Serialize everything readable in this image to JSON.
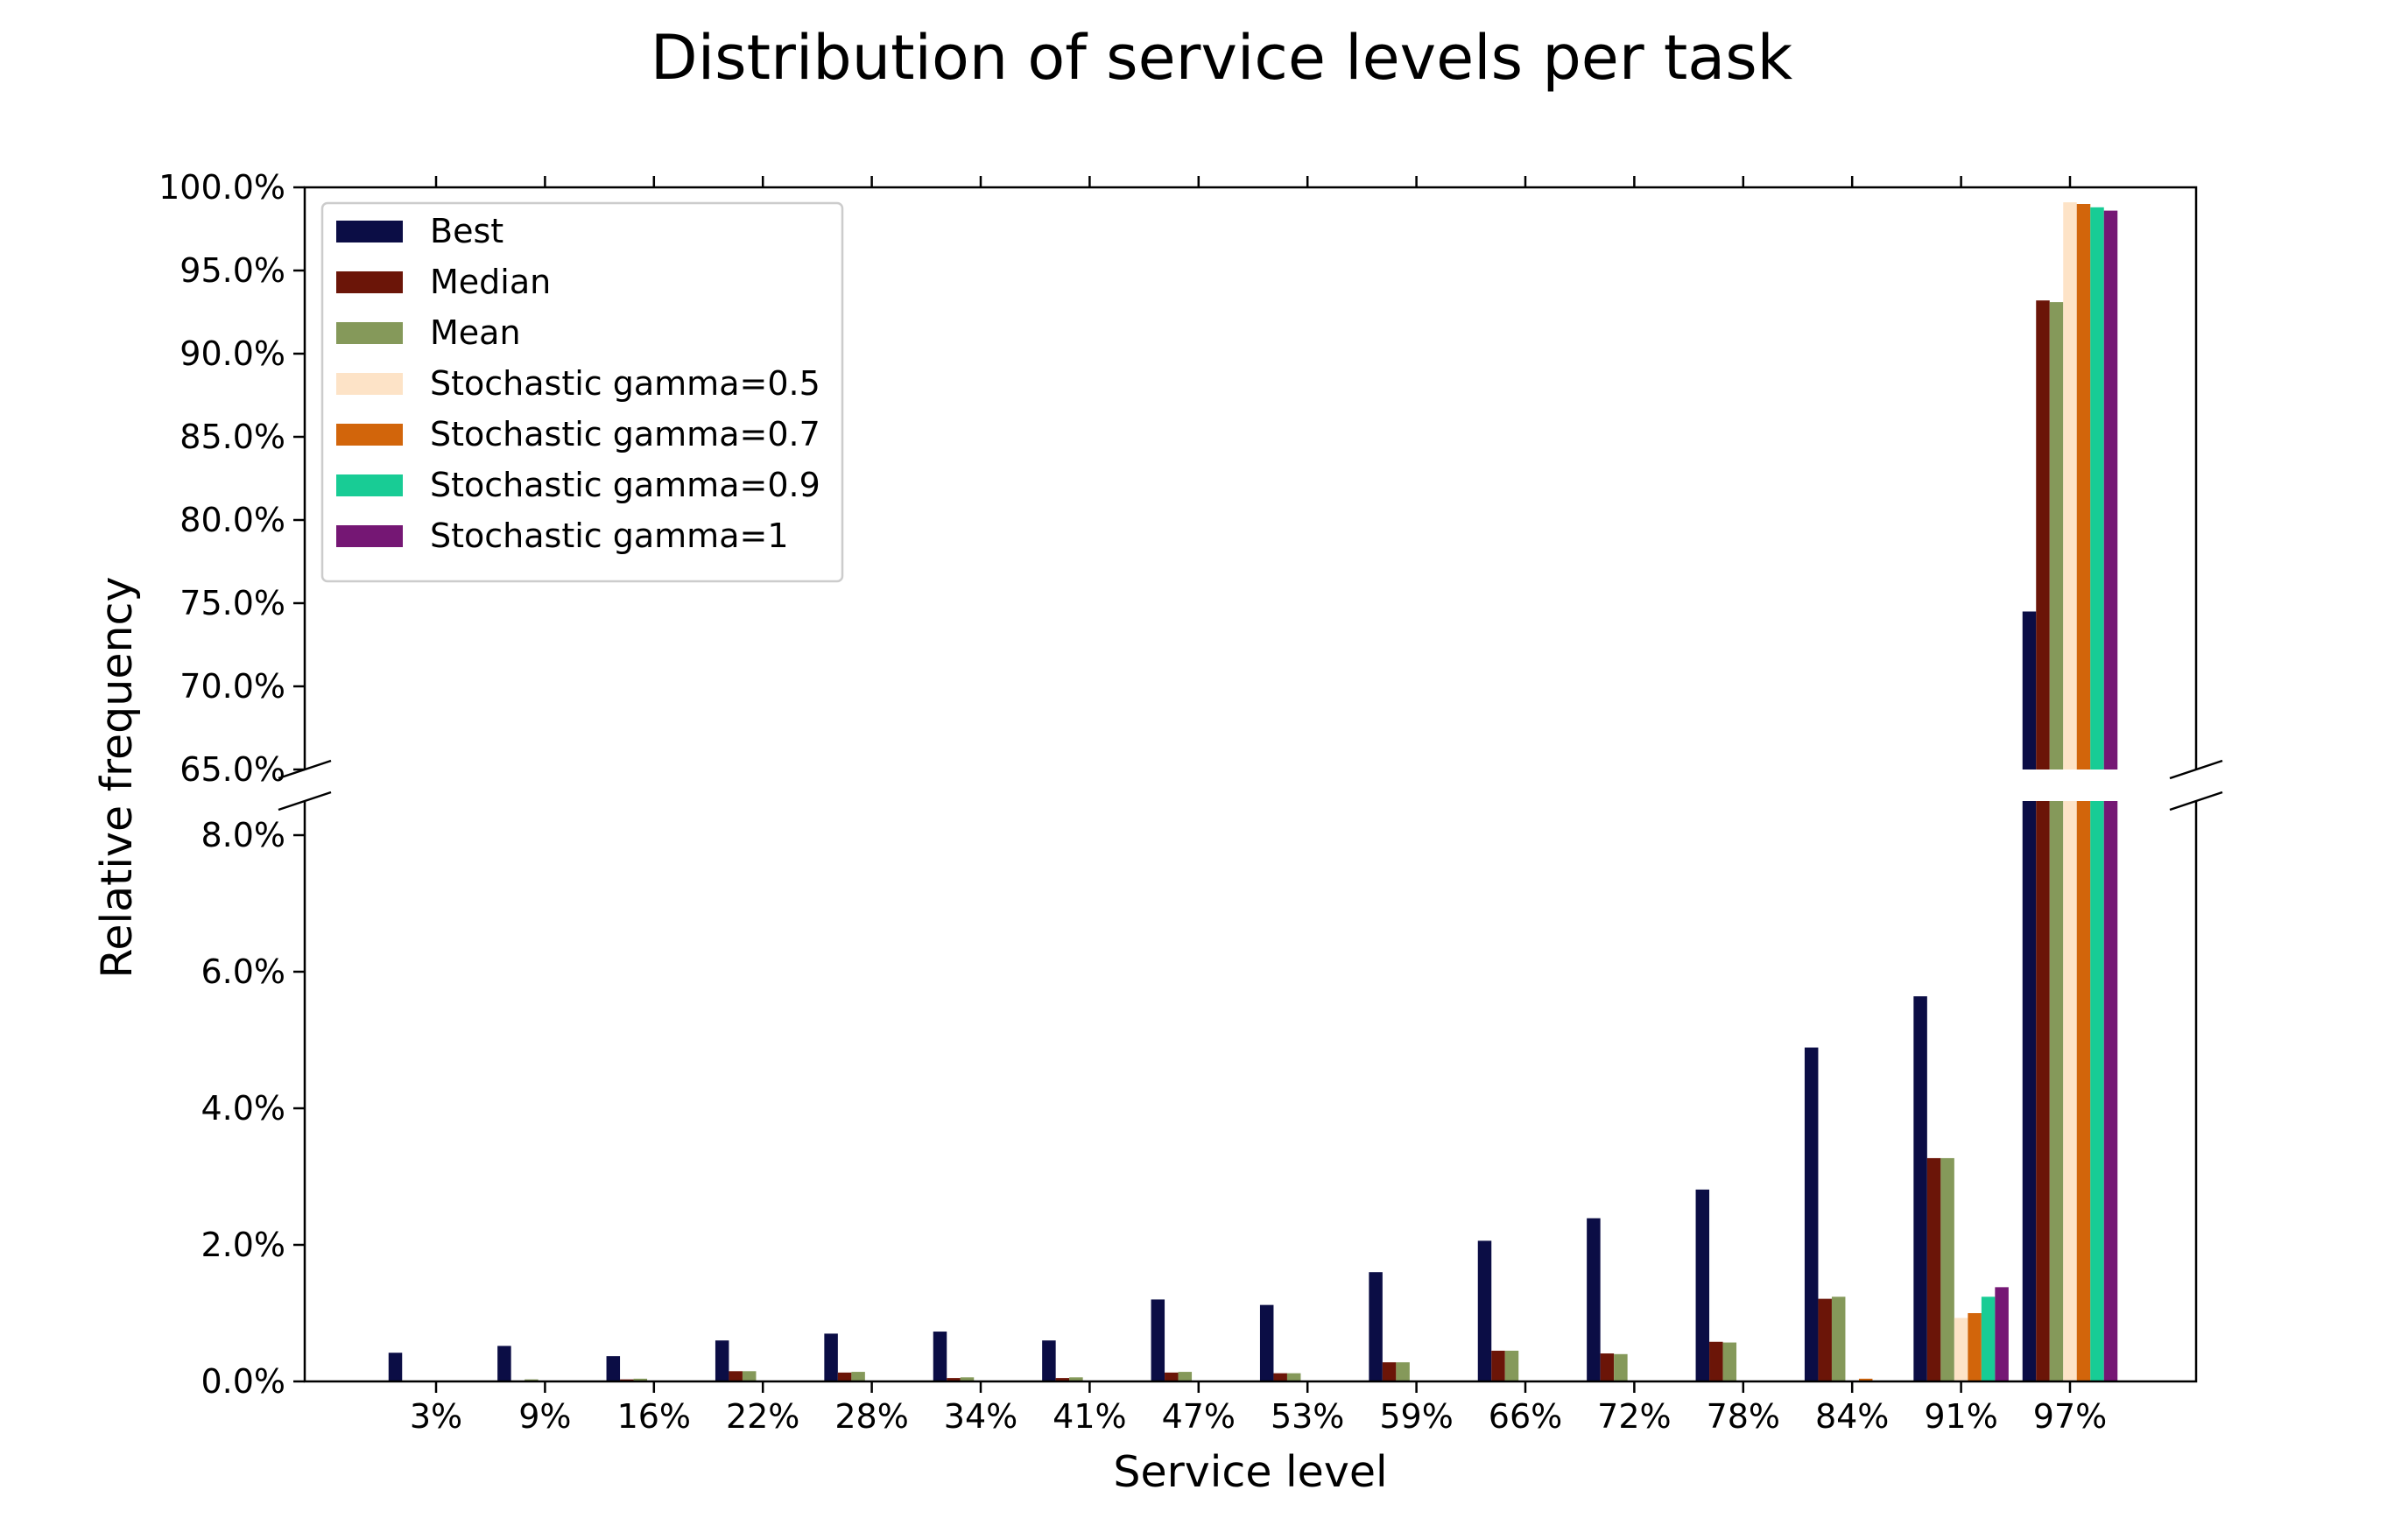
{
  "chart_data": {
    "type": "bar",
    "title": "Distribution of service levels per task",
    "xlabel": "Service level",
    "ylabel": "Relative frequency",
    "categories": [
      "3%",
      "9%",
      "16%",
      "22%",
      "28%",
      "34%",
      "41%",
      "47%",
      "53%",
      "59%",
      "66%",
      "72%",
      "78%",
      "84%",
      "91%",
      "97%"
    ],
    "broken_axis": {
      "lower_ylim": [
        0,
        8.5
      ],
      "upper_ylim": [
        65,
        100
      ],
      "lower_ticks": [
        "0.0%",
        "2.0%",
        "4.0%",
        "6.0%",
        "8.0%"
      ],
      "lower_tick_values": [
        0,
        2,
        4,
        6,
        8
      ],
      "upper_ticks": [
        "65.0%",
        "70.0%",
        "75.0%",
        "80.0%",
        "85.0%",
        "90.0%",
        "95.0%",
        "100.0%"
      ],
      "upper_tick_values": [
        65,
        70,
        75,
        80,
        85,
        90,
        95,
        100
      ]
    },
    "legend_position": "upper-left",
    "series": [
      {
        "name": "Best",
        "color": "#0b0d45",
        "values": [
          0.42,
          0.52,
          0.37,
          0.6,
          0.7,
          0.73,
          0.6,
          1.2,
          1.12,
          1.6,
          2.06,
          2.39,
          2.81,
          4.89,
          5.64,
          74.5
        ]
      },
      {
        "name": "Median",
        "color": "#6b1508",
        "values": [
          0.0,
          0.0,
          0.03,
          0.15,
          0.13,
          0.05,
          0.05,
          0.13,
          0.12,
          0.28,
          0.45,
          0.41,
          0.58,
          1.21,
          3.27,
          93.2
        ]
      },
      {
        "name": "Mean",
        "color": "#85995a",
        "values": [
          0.0,
          0.03,
          0.04,
          0.15,
          0.14,
          0.06,
          0.06,
          0.14,
          0.12,
          0.28,
          0.45,
          0.4,
          0.57,
          1.24,
          3.27,
          93.1
        ]
      },
      {
        "name": "Stochastic gamma=0.5",
        "color": "#fde3c7",
        "values": [
          0.0,
          0.0,
          0.0,
          0.0,
          0.0,
          0.0,
          0.0,
          0.0,
          0.0,
          0.0,
          0.0,
          0.0,
          0.0,
          0.0,
          0.93,
          99.1
        ]
      },
      {
        "name": "Stochastic gamma=0.7",
        "color": "#d2650b",
        "values": [
          0.0,
          0.0,
          0.0,
          0.0,
          0.0,
          0.0,
          0.0,
          0.0,
          0.0,
          0.0,
          0.0,
          0.0,
          0.0,
          0.04,
          1.0,
          99.0
        ]
      },
      {
        "name": "Stochastic gamma=0.9",
        "color": "#18cc95",
        "values": [
          0.0,
          0.0,
          0.0,
          0.0,
          0.0,
          0.0,
          0.0,
          0.0,
          0.0,
          0.0,
          0.0,
          0.0,
          0.0,
          0.0,
          1.24,
          98.8
        ]
      },
      {
        "name": "Stochastic gamma=1",
        "color": "#751774",
        "values": [
          0.0,
          0.0,
          0.0,
          0.0,
          0.0,
          0.0,
          0.0,
          0.0,
          0.0,
          0.0,
          0.0,
          0.0,
          0.0,
          0.0,
          1.38,
          98.6
        ]
      }
    ]
  }
}
